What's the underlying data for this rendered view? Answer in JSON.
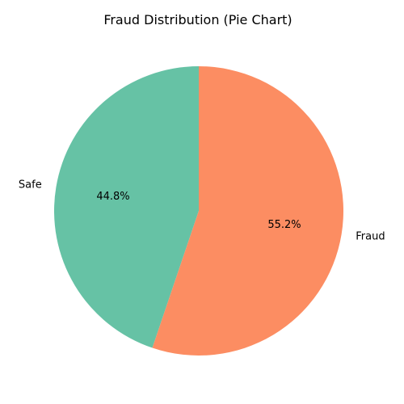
{
  "chart_data": {
    "type": "pie",
    "title": "Fraud Distribution (Pie Chart)",
    "start_angle_deg": 90,
    "direction": "counterclockwise",
    "slices": [
      {
        "label": "Safe",
        "value": 44.8,
        "pct_label": "44.8%",
        "color": "#66c2a5"
      },
      {
        "label": "Fraud",
        "value": 55.2,
        "pct_label": "55.2%",
        "color": "#fc8d62"
      }
    ]
  }
}
